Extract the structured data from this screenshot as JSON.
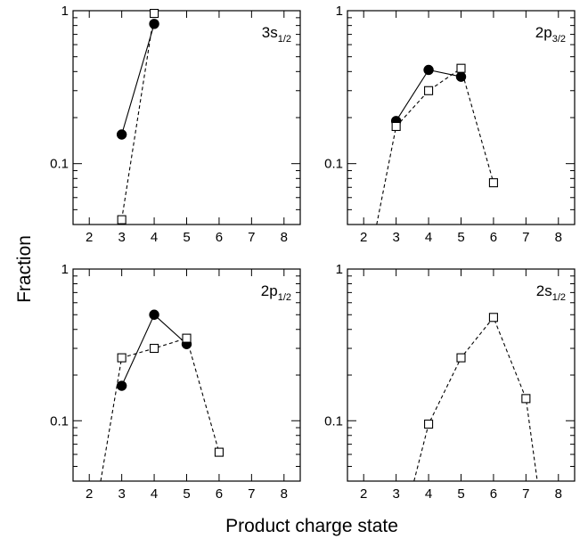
{
  "chart_data": {
    "type": "scatter",
    "xlabel": "Product charge state",
    "ylabel": "Fraction",
    "x_scale": "linear",
    "y_scale": "log",
    "xlim": [
      1.5,
      8.5
    ],
    "ylim": [
      0.04,
      1.0
    ],
    "xticks": [
      "2",
      "3",
      "4",
      "5",
      "6",
      "7",
      "8"
    ],
    "yticks": [
      "0.1",
      "1"
    ],
    "grid": false,
    "panels": [
      {
        "label_main": "3s",
        "label_sub": "1/2",
        "series": [
          {
            "marker": "filled-circle",
            "line": "solid",
            "points": [
              [
                3,
                0.155
              ],
              [
                4,
                0.82
              ]
            ]
          },
          {
            "marker": "open-square",
            "line": "dashed",
            "points": [
              [
                3,
                0.043
              ],
              [
                4,
                0.96
              ]
            ]
          }
        ]
      },
      {
        "label_main": "2p",
        "label_sub": "3/2",
        "series": [
          {
            "marker": "filled-circle",
            "line": "solid",
            "points": [
              [
                3,
                0.19
              ],
              [
                4,
                0.41
              ],
              [
                5,
                0.37
              ]
            ]
          },
          {
            "marker": "open-square",
            "line": "dashed",
            "lead_in": [
              2.4,
              0.04
            ],
            "points": [
              [
                3,
                0.175
              ],
              [
                4,
                0.3
              ],
              [
                5,
                0.42
              ],
              [
                6,
                0.075
              ]
            ]
          }
        ]
      },
      {
        "label_main": "2p",
        "label_sub": "1/2",
        "series": [
          {
            "marker": "filled-circle",
            "line": "solid",
            "points": [
              [
                3,
                0.17
              ],
              [
                4,
                0.5
              ],
              [
                5,
                0.32
              ]
            ]
          },
          {
            "marker": "open-square",
            "line": "dashed",
            "lead_in": [
              2.35,
              0.04
            ],
            "points": [
              [
                3,
                0.26
              ],
              [
                4,
                0.3
              ],
              [
                5,
                0.35
              ],
              [
                6,
                0.062
              ]
            ]
          }
        ]
      },
      {
        "label_main": "2s",
        "label_sub": "1/2",
        "series": [
          {
            "marker": "open-square",
            "line": "dashed",
            "lead_in": [
              3.55,
              0.04
            ],
            "lead_out": [
              7.35,
              0.04
            ],
            "points": [
              [
                4,
                0.095
              ],
              [
                5,
                0.26
              ],
              [
                6,
                0.48
              ],
              [
                7,
                0.14
              ]
            ]
          }
        ]
      }
    ]
  }
}
